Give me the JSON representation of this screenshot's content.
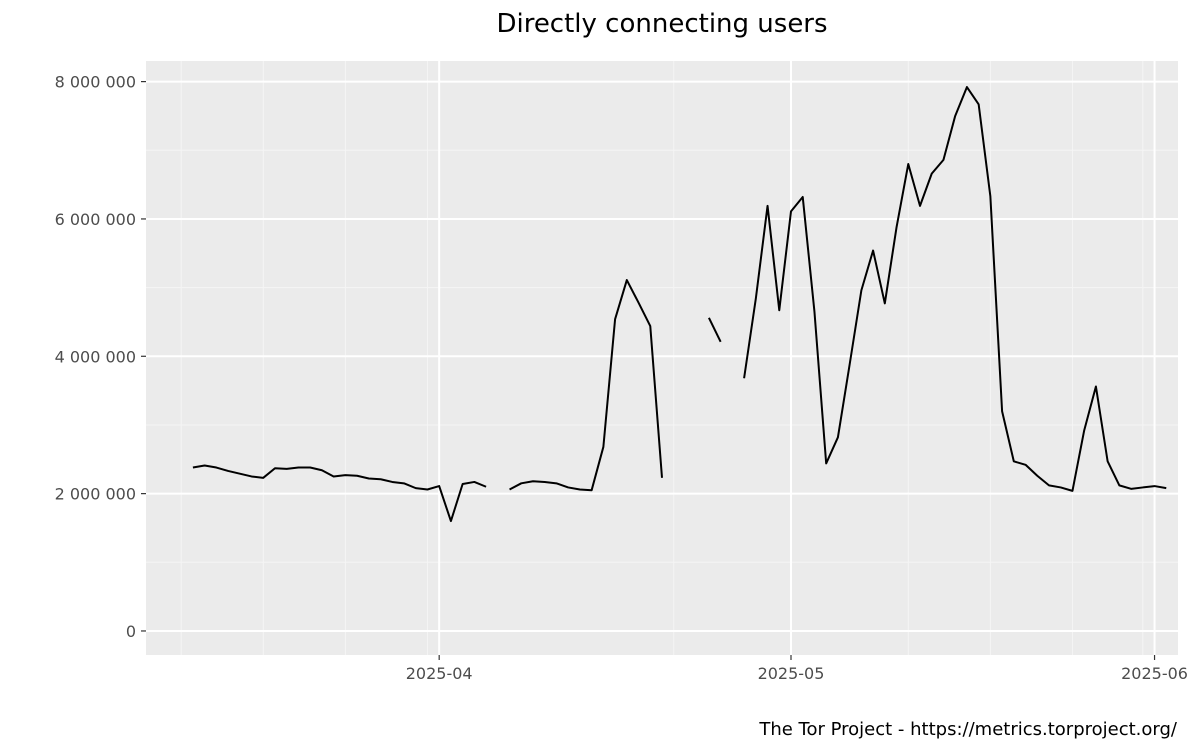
{
  "chart_data": {
    "type": "line",
    "title": "Directly connecting users",
    "caption": "The Tor Project - https://metrics.torproject.org/",
    "xlabel": "",
    "ylabel": "",
    "xlim": [
      "2025-03-07",
      "2025-06-03"
    ],
    "ylim": [
      -350000,
      8300000
    ],
    "x_ticks": [
      {
        "date": "2025-04-01",
        "label": "2025-04"
      },
      {
        "date": "2025-05-01",
        "label": "2025-05"
      },
      {
        "date": "2025-06-01",
        "label": "2025-06"
      }
    ],
    "x_minor_grid": [
      "2025-03-10",
      "2025-03-17",
      "2025-03-24",
      "2025-03-31",
      "2025-04-21",
      "2025-05-11",
      "2025-05-18",
      "2025-05-25",
      "2025-05-31"
    ],
    "y_ticks": [
      {
        "value": 0,
        "label": "0"
      },
      {
        "value": 2000000,
        "label": "2 000 000"
      },
      {
        "value": 4000000,
        "label": "4 000 000"
      },
      {
        "value": 6000000,
        "label": "6 000 000"
      },
      {
        "value": 8000000,
        "label": "8 000 000"
      }
    ],
    "grid": true,
    "background_color": "#ebebeb",
    "line_color": "#000000",
    "series": [
      {
        "segments": [
          [
            [
              "2025-03-11",
              2380000
            ],
            [
              "2025-03-12",
              2410000
            ],
            [
              "2025-03-13",
              2380000
            ],
            [
              "2025-03-14",
              2330000
            ],
            [
              "2025-03-15",
              2290000
            ],
            [
              "2025-03-16",
              2250000
            ],
            [
              "2025-03-17",
              2230000
            ],
            [
              "2025-03-18",
              2370000
            ],
            [
              "2025-03-19",
              2360000
            ],
            [
              "2025-03-20",
              2380000
            ],
            [
              "2025-03-21",
              2380000
            ],
            [
              "2025-03-22",
              2340000
            ],
            [
              "2025-03-23",
              2250000
            ],
            [
              "2025-03-24",
              2270000
            ],
            [
              "2025-03-25",
              2260000
            ],
            [
              "2025-03-26",
              2220000
            ],
            [
              "2025-03-27",
              2210000
            ],
            [
              "2025-03-28",
              2170000
            ],
            [
              "2025-03-29",
              2150000
            ],
            [
              "2025-03-30",
              2080000
            ],
            [
              "2025-03-31",
              2060000
            ],
            [
              "2025-04-01",
              2110000
            ],
            [
              "2025-04-02",
              1600000
            ],
            [
              "2025-04-03",
              2140000
            ],
            [
              "2025-04-04",
              2170000
            ],
            [
              "2025-04-05",
              2100000
            ]
          ],
          [
            [
              "2025-04-07",
              2060000
            ],
            [
              "2025-04-08",
              2150000
            ],
            [
              "2025-04-09",
              2180000
            ],
            [
              "2025-04-10",
              2170000
            ],
            [
              "2025-04-11",
              2150000
            ],
            [
              "2025-04-12",
              2090000
            ],
            [
              "2025-04-13",
              2060000
            ],
            [
              "2025-04-14",
              2050000
            ],
            [
              "2025-04-15",
              2680000
            ],
            [
              "2025-04-16",
              4540000
            ],
            [
              "2025-04-17",
              5110000
            ],
            [
              "2025-04-18",
              4780000
            ],
            [
              "2025-04-19",
              4440000
            ],
            [
              "2025-04-20",
              2230000
            ]
          ],
          [
            [
              "2025-04-24",
              4560000
            ],
            [
              "2025-04-25",
              4210000
            ]
          ],
          [
            [
              "2025-04-27",
              3680000
            ],
            [
              "2025-04-28",
              4840000
            ],
            [
              "2025-04-29",
              6190000
            ],
            [
              "2025-04-30",
              4670000
            ],
            [
              "2025-05-01",
              6110000
            ],
            [
              "2025-05-02",
              6320000
            ],
            [
              "2025-05-03",
              4650000
            ],
            [
              "2025-05-04",
              2440000
            ],
            [
              "2025-05-05",
              2820000
            ],
            [
              "2025-05-06",
              3880000
            ],
            [
              "2025-05-07",
              4960000
            ],
            [
              "2025-05-08",
              5540000
            ],
            [
              "2025-05-09",
              4770000
            ],
            [
              "2025-05-10",
              5880000
            ],
            [
              "2025-05-11",
              6800000
            ],
            [
              "2025-05-12",
              6190000
            ],
            [
              "2025-05-13",
              6660000
            ],
            [
              "2025-05-14",
              6860000
            ],
            [
              "2025-05-15",
              7500000
            ],
            [
              "2025-05-16",
              7920000
            ],
            [
              "2025-05-17",
              7670000
            ],
            [
              "2025-05-18",
              6330000
            ],
            [
              "2025-05-19",
              3200000
            ],
            [
              "2025-05-20",
              2470000
            ],
            [
              "2025-05-21",
              2420000
            ],
            [
              "2025-05-22",
              2260000
            ],
            [
              "2025-05-23",
              2120000
            ],
            [
              "2025-05-24",
              2090000
            ],
            [
              "2025-05-25",
              2040000
            ],
            [
              "2025-05-26",
              2920000
            ],
            [
              "2025-05-27",
              3560000
            ],
            [
              "2025-05-28",
              2470000
            ],
            [
              "2025-05-29",
              2120000
            ],
            [
              "2025-05-30",
              2070000
            ],
            [
              "2025-05-31",
              2090000
            ],
            [
              "2025-06-01",
              2110000
            ],
            [
              "2025-06-02",
              2080000
            ]
          ]
        ]
      }
    ]
  }
}
